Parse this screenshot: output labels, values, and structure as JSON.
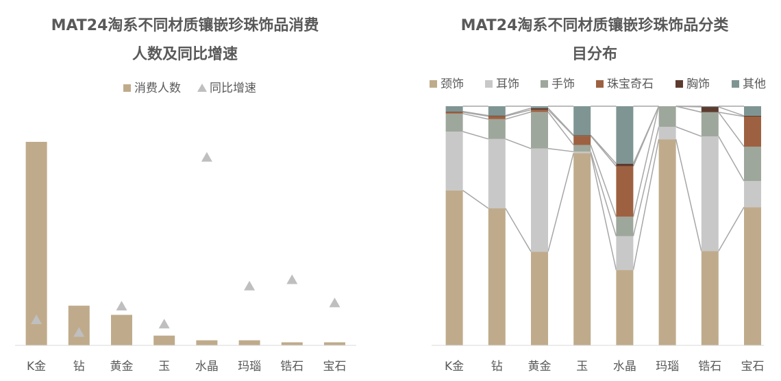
{
  "chart_data": [
    {
      "type": "bar",
      "title_lines": [
        "MAT24淘系不同材质镶嵌珍珠饰品消费",
        "人数及同比增速"
      ],
      "categories": [
        "K金",
        "钻",
        "黄金",
        "玉",
        "水晶",
        "玛瑙",
        "锆石",
        "宝石"
      ],
      "series": [
        {
          "name": "消费人数",
          "kind": "bar",
          "color": "#bfab8b",
          "values": [
            100,
            19.5,
            15,
            4.8,
            2.5,
            2.5,
            1.5,
            1.5
          ]
        },
        {
          "name": "同比增速",
          "kind": "marker",
          "color": "#bfbfbf",
          "values": [
            12,
            6,
            18.5,
            10,
            89,
            28,
            31,
            20
          ]
        }
      ],
      "ylim": [
        0,
        100
      ],
      "legend": "top",
      "grid": false,
      "axis_values_shown": false
    },
    {
      "type": "bar",
      "stacked": true,
      "percent": true,
      "title_lines": [
        "MAT24淘系不同材质镶嵌珍珠饰品分类",
        "目分布"
      ],
      "categories": [
        "K金",
        "钻",
        "黄金",
        "玉",
        "水晶",
        "玛瑙",
        "锆石",
        "宝石"
      ],
      "series": [
        {
          "name": "颈饰",
          "color": "#bfab8b",
          "values": [
            64.8,
            57.3,
            39.2,
            80.4,
            31.5,
            86.2,
            39.4,
            57.8
          ]
        },
        {
          "name": "耳饰",
          "color": "#c8c8c8",
          "values": [
            24.6,
            29.0,
            43.1,
            0.6,
            14.2,
            5.2,
            48.0,
            10.9
          ]
        },
        {
          "name": "手饰",
          "color": "#9ea79b",
          "values": [
            7.5,
            8.3,
            15.3,
            2.8,
            8.1,
            8.6,
            10.1,
            14.4
          ]
        },
        {
          "name": "珠宝奇石",
          "color": "#9d6141",
          "values": [
            0.6,
            1.2,
            0.9,
            3.8,
            21.1,
            0.0,
            0.0,
            12.6
          ]
        },
        {
          "name": "胸饰",
          "color": "#5c3b2e",
          "values": [
            0.3,
            0.3,
            0.7,
            0.3,
            1.1,
            0.0,
            2.2,
            0.3
          ]
        },
        {
          "name": "其他",
          "color": "#7f9593",
          "values": [
            2.2,
            3.9,
            0.8,
            12.1,
            24.0,
            0.0,
            0.3,
            4.0
          ]
        }
      ],
      "ylim": [
        0,
        100
      ],
      "legend": "top",
      "grid": false,
      "axis_values_shown": false
    }
  ]
}
